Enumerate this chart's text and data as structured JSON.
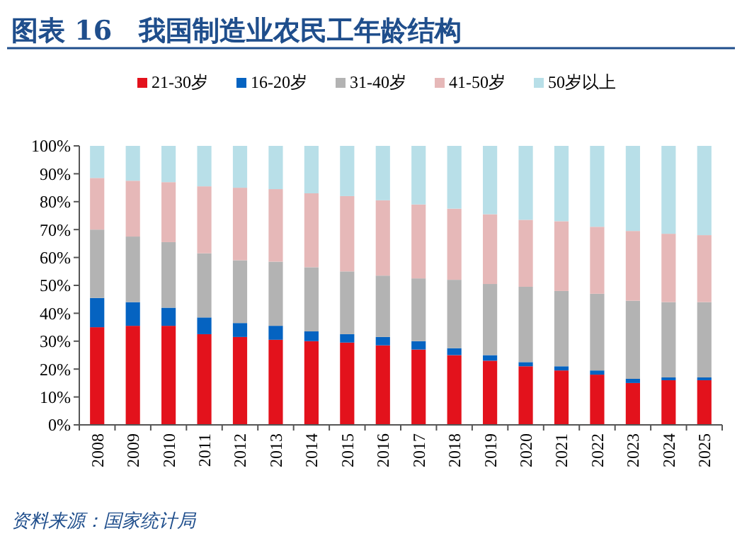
{
  "chart_data": {
    "type": "bar",
    "stacked": true,
    "title": "图表 16　我国制造业农民工年龄结构",
    "categories": [
      "2008",
      "2009",
      "2010",
      "2011",
      "2012",
      "2013",
      "2014",
      "2015",
      "2016",
      "2017",
      "2018",
      "2019",
      "2020",
      "2021",
      "2022",
      "2023",
      "2024",
      "2025"
    ],
    "series": [
      {
        "name": "21-30岁",
        "color": "#e3121c",
        "values": [
          35,
          35.5,
          35.5,
          32.5,
          31.5,
          30.5,
          30,
          29.5,
          28.5,
          27,
          25,
          23,
          21,
          19.5,
          18,
          15,
          16,
          16
        ]
      },
      {
        "name": "16-20岁",
        "color": "#0563c1",
        "values": [
          10.5,
          8.5,
          6.5,
          6,
          5,
          5,
          3.5,
          3,
          3,
          3,
          2.5,
          2,
          1.5,
          1.5,
          1.5,
          1.5,
          1,
          1
        ]
      },
      {
        "name": "31-40岁",
        "color": "#b3b3b3",
        "values": [
          24.5,
          23.5,
          23.5,
          23,
          22.5,
          23,
          23,
          22.5,
          22,
          22.5,
          24.5,
          25.5,
          27,
          27,
          27.5,
          28,
          27,
          27
        ]
      },
      {
        "name": "41-50岁",
        "color": "#e6b8b8",
        "values": [
          18.5,
          20,
          21.5,
          24,
          26,
          26,
          26.5,
          27,
          27,
          26.5,
          25.5,
          25,
          24,
          25,
          24,
          25,
          24.5,
          24
        ]
      },
      {
        "name": "50岁以上",
        "color": "#b8dfe8",
        "values": [
          11.5,
          12.5,
          13,
          14.5,
          15,
          15.5,
          17,
          18,
          19.5,
          21,
          22.5,
          24.5,
          26.5,
          27,
          29,
          30.5,
          31.5,
          32
        ]
      }
    ],
    "ylim": [
      0,
      100
    ],
    "yticks": [
      {
        "value": 0,
        "label": "0%"
      },
      {
        "value": 10,
        "label": "10%"
      },
      {
        "value": 20,
        "label": "20%"
      },
      {
        "value": 30,
        "label": "30%"
      },
      {
        "value": 40,
        "label": "40%"
      },
      {
        "value": 50,
        "label": "50%"
      },
      {
        "value": 60,
        "label": "60%"
      },
      {
        "value": 70,
        "label": "70%"
      },
      {
        "value": 80,
        "label": "80%"
      },
      {
        "value": 90,
        "label": "90%"
      },
      {
        "value": 100,
        "label": "100%"
      }
    ],
    "legend": "top",
    "annotations": [
      "资料来源：国家统计局"
    ]
  }
}
